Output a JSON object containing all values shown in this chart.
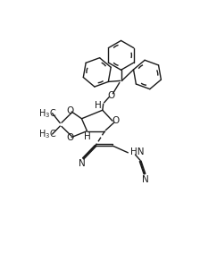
{
  "bg_color": "#ffffff",
  "line_color": "#1a1a1a",
  "line_width": 1.0,
  "fig_width": 2.24,
  "fig_height": 2.92,
  "dpi": 100,
  "xlim": [
    0,
    10
  ],
  "ylim": [
    0,
    13
  ]
}
